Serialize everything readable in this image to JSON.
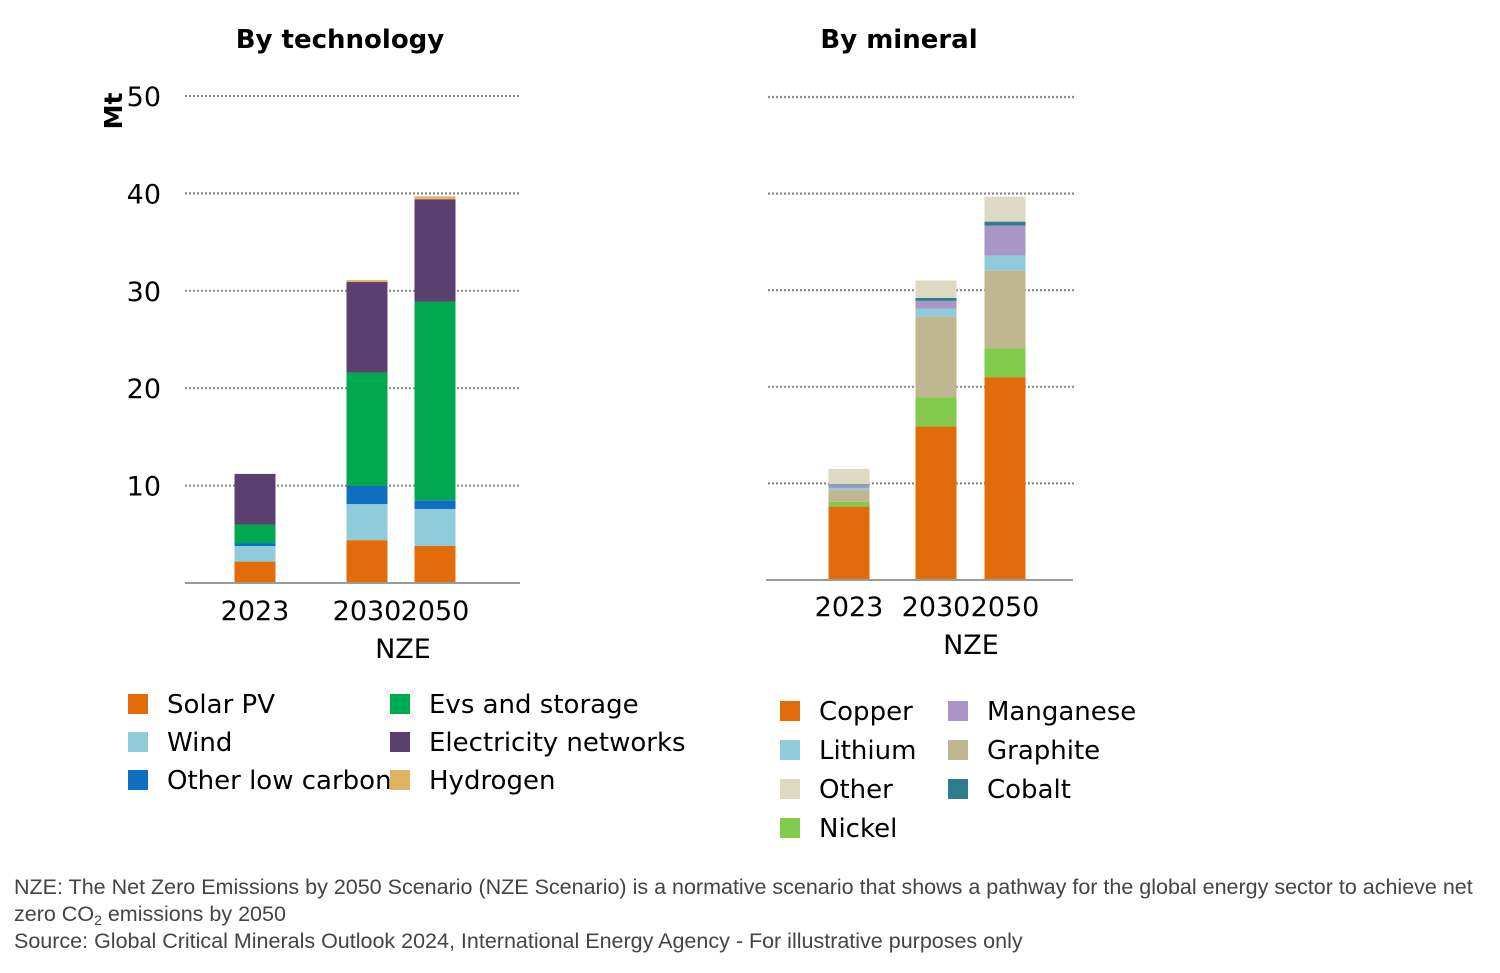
{
  "chart_data": [
    {
      "type": "bar",
      "stacked": true,
      "title": "By technology",
      "ylabel": "Mt",
      "ylim": [
        0,
        50
      ],
      "yticks": [
        10,
        20,
        30,
        40,
        50
      ],
      "grid": "horizontal dotted",
      "categories": [
        "2023",
        "2030",
        "2050"
      ],
      "group_label": "NZE",
      "group_categories": [
        "2030",
        "2050"
      ],
      "legend_position": "bottom",
      "series": [
        {
          "name": "Solar PV",
          "color": "#E36C0A",
          "values": [
            2.2,
            4.4,
            3.8
          ]
        },
        {
          "name": "Wind",
          "color": "#8FCBDA",
          "values": [
            1.6,
            3.7,
            3.8
          ]
        },
        {
          "name": "Other low carbon",
          "color": "#0E6FC1",
          "values": [
            0.3,
            1.9,
            0.9
          ]
        },
        {
          "name": "Evs and storage",
          "color": "#00A94F",
          "values": [
            1.9,
            11.6,
            20.4
          ]
        },
        {
          "name": "Electricity networks",
          "color": "#5A3F6F",
          "values": [
            5.2,
            9.3,
            10.5
          ]
        },
        {
          "name": "Hydrogen",
          "color": "#E1B260",
          "values": [
            0.0,
            0.2,
            0.3
          ]
        }
      ]
    },
    {
      "type": "bar",
      "stacked": true,
      "title": "By mineral",
      "ylabel": "",
      "ylim": [
        0,
        50
      ],
      "yticks": [
        10,
        20,
        30,
        40,
        50
      ],
      "grid": "horizontal dotted",
      "categories": [
        "2023",
        "2030",
        "2050"
      ],
      "group_label": "NZE",
      "group_categories": [
        "2030",
        "2050"
      ],
      "legend_position": "bottom",
      "series": [
        {
          "name": "Copper",
          "color": "#E36C0A",
          "values": [
            7.6,
            15.9,
            21.0
          ]
        },
        {
          "name": "Nickel",
          "color": "#82CA4C",
          "values": [
            0.5,
            3.0,
            3.0
          ]
        },
        {
          "name": "Graphite",
          "color": "#BFB78F",
          "values": [
            1.2,
            8.4,
            8.0
          ]
        },
        {
          "name": "Lithium",
          "color": "#8FCBDA",
          "values": [
            0.2,
            0.8,
            1.6
          ]
        },
        {
          "name": "Manganese",
          "color": "#A996C5",
          "values": [
            0.3,
            0.8,
            3.1
          ]
        },
        {
          "name": "Cobalt",
          "color": "#2E7D8F",
          "values": [
            0.1,
            0.3,
            0.4
          ]
        },
        {
          "name": "Other",
          "color": "#DDD9C3",
          "values": [
            1.6,
            1.8,
            2.6
          ]
        }
      ]
    }
  ],
  "legends": [
    {
      "columns": [
        [
          "Solar PV",
          "Wind",
          "Other low carbon"
        ],
        [
          "Evs and storage",
          "Electricity networks",
          "Hydrogen"
        ]
      ]
    },
    {
      "columns": [
        [
          "Copper",
          "Lithium",
          "Other",
          "Nickel"
        ],
        [
          "Manganese",
          "Graphite",
          "Cobalt"
        ]
      ]
    }
  ],
  "notes": {
    "nze_pre": "NZE: The Net Zero Emissions by 2050 Scenario (NZE Scenario) is a normative scenario that shows a pathway for the global energy sector to achieve net zero CO",
    "nze_sub": "2",
    "nze_post": " emissions by 2050",
    "source": "Source: Global Critical Minerals Outlook 2024, International Energy Agency - For illustrative purposes only"
  }
}
